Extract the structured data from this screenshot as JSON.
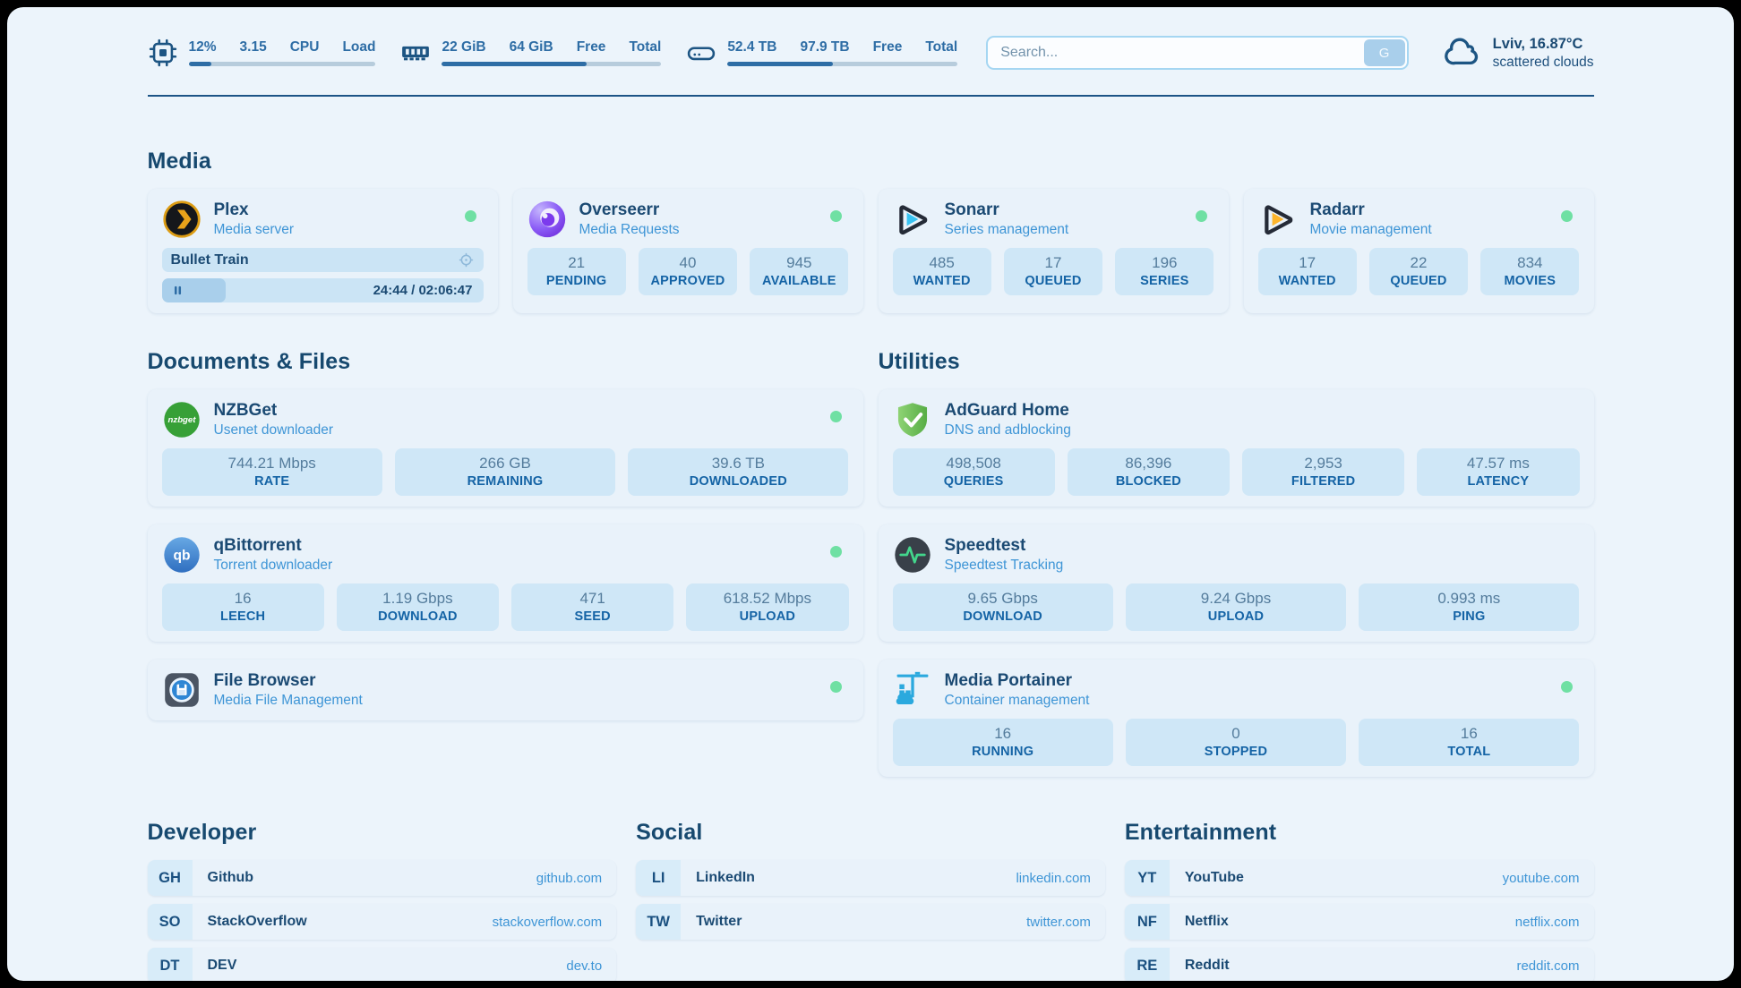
{
  "topbar": {
    "resources": [
      {
        "id": "cpu",
        "icon": "cpu-icon",
        "values": [
          "12%",
          "3.15"
        ],
        "labels": [
          "CPU",
          "Load"
        ],
        "progress_pct": 12
      },
      {
        "id": "memory",
        "icon": "memory-icon",
        "values": [
          "22 GiB",
          "64 GiB"
        ],
        "labels": [
          "Free",
          "Total"
        ],
        "progress_pct": 66
      },
      {
        "id": "storage",
        "icon": "disk-icon",
        "values": [
          "52.4 TB",
          "97.9 TB"
        ],
        "labels": [
          "Free",
          "Total"
        ],
        "progress_pct": 46
      }
    ],
    "search": {
      "placeholder": "Search...",
      "button_label": "G"
    },
    "weather": {
      "icon": "cloud-icon",
      "location_temp": "Lviv, 16.87°C",
      "condition": "scattered clouds"
    }
  },
  "groups": [
    {
      "title": "Media",
      "services": [
        {
          "name": "Plex",
          "subtitle": "Media server",
          "icon": "plex-icon",
          "online": true,
          "now_playing": {
            "title": "Bullet Train",
            "time": "24:44 / 02:06:47",
            "progress_pct": 20
          }
        },
        {
          "name": "Overseerr",
          "subtitle": "Media Requests",
          "icon": "overseerr-icon",
          "online": true,
          "stats": [
            {
              "value": "21",
              "label": "PENDING"
            },
            {
              "value": "40",
              "label": "APPROVED"
            },
            {
              "value": "945",
              "label": "AVAILABLE"
            }
          ]
        },
        {
          "name": "Sonarr",
          "subtitle": "Series management",
          "icon": "sonarr-icon",
          "online": true,
          "stats": [
            {
              "value": "485",
              "label": "WANTED"
            },
            {
              "value": "17",
              "label": "QUEUED"
            },
            {
              "value": "196",
              "label": "SERIES"
            }
          ]
        },
        {
          "name": "Radarr",
          "subtitle": "Movie management",
          "icon": "radarr-icon",
          "online": true,
          "stats": [
            {
              "value": "17",
              "label": "WANTED"
            },
            {
              "value": "22",
              "label": "QUEUED"
            },
            {
              "value": "834",
              "label": "MOVIES"
            }
          ]
        }
      ]
    },
    {
      "title": "Documents & Files",
      "services": [
        {
          "name": "NZBGet",
          "subtitle": "Usenet downloader",
          "icon": "nzbget-icon",
          "online": true,
          "stats": [
            {
              "value": "744.21 Mbps",
              "label": "RATE"
            },
            {
              "value": "266 GB",
              "label": "REMAINING"
            },
            {
              "value": "39.6 TB",
              "label": "DOWNLOADED"
            }
          ]
        },
        {
          "name": "qBittorrent",
          "subtitle": "Torrent downloader",
          "icon": "qbittorrent-icon",
          "online": true,
          "stats": [
            {
              "value": "16",
              "label": "LEECH"
            },
            {
              "value": "1.19 Gbps",
              "label": "DOWNLOAD"
            },
            {
              "value": "471",
              "label": "SEED"
            },
            {
              "value": "618.52 Mbps",
              "label": "UPLOAD"
            }
          ]
        },
        {
          "name": "File Browser",
          "subtitle": "Media File Management",
          "icon": "filebrowser-icon",
          "online": true
        }
      ]
    },
    {
      "title": "Utilities",
      "services": [
        {
          "name": "AdGuard Home",
          "subtitle": "DNS and adblocking",
          "icon": "adguard-icon",
          "online": false,
          "stats": [
            {
              "value": "498,508",
              "label": "QUERIES"
            },
            {
              "value": "86,396",
              "label": "BLOCKED"
            },
            {
              "value": "2,953",
              "label": "FILTERED"
            },
            {
              "value": "47.57 ms",
              "label": "LATENCY"
            }
          ]
        },
        {
          "name": "Speedtest",
          "subtitle": "Speedtest Tracking",
          "icon": "speedtest-icon",
          "online": false,
          "stats": [
            {
              "value": "9.65 Gbps",
              "label": "DOWNLOAD"
            },
            {
              "value": "9.24 Gbps",
              "label": "UPLOAD"
            },
            {
              "value": "0.993 ms",
              "label": "PING"
            }
          ]
        },
        {
          "name": "Media Portainer",
          "subtitle": "Container management",
          "icon": "portainer-icon",
          "online": true,
          "stats": [
            {
              "value": "16",
              "label": "RUNNING"
            },
            {
              "value": "0",
              "label": "STOPPED"
            },
            {
              "value": "16",
              "label": "TOTAL"
            }
          ]
        }
      ]
    }
  ],
  "bookmarks": [
    {
      "title": "Developer",
      "items": [
        {
          "abbr": "GH",
          "name": "Github",
          "domain": "github.com"
        },
        {
          "abbr": "SO",
          "name": "StackOverflow",
          "domain": "stackoverflow.com"
        },
        {
          "abbr": "DT",
          "name": "DEV",
          "domain": "dev.to"
        }
      ]
    },
    {
      "title": "Social",
      "items": [
        {
          "abbr": "LI",
          "name": "LinkedIn",
          "domain": "linkedin.com"
        },
        {
          "abbr": "TW",
          "name": "Twitter",
          "domain": "twitter.com"
        }
      ]
    },
    {
      "title": "Entertainment",
      "items": [
        {
          "abbr": "YT",
          "name": "YouTube",
          "domain": "youtube.com"
        },
        {
          "abbr": "NF",
          "name": "Netflix",
          "domain": "netflix.com"
        },
        {
          "abbr": "RE",
          "name": "Reddit",
          "domain": "reddit.com"
        }
      ]
    }
  ],
  "colors": {
    "page_bg": "#ecf4fb",
    "card_bg": "#e9f2fa",
    "stat_bg": "#cfe7f7",
    "dark_text": "#1b4a73",
    "accent_link": "#3e95d6",
    "status_green": "#6fe0a3",
    "topbar_blue": "#2e6da5"
  }
}
